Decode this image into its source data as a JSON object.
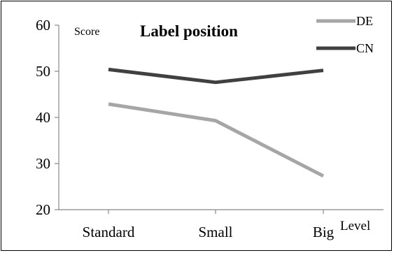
{
  "chart_data": {
    "type": "line",
    "title": "Label position",
    "ylabel": "Score",
    "xlabel": "Level",
    "categories": [
      "Standard",
      "Small",
      "Big"
    ],
    "ylim": [
      20,
      60
    ],
    "yticks": [
      20,
      30,
      40,
      50,
      60
    ],
    "grid": false,
    "legend_position": "top-right",
    "series": [
      {
        "name": "DE",
        "values": [
          42.9,
          39.3,
          27.3
        ],
        "color": "#a6a6a6"
      },
      {
        "name": "CN",
        "values": [
          50.4,
          47.6,
          50.2
        ],
        "color": "#404040"
      }
    ]
  }
}
